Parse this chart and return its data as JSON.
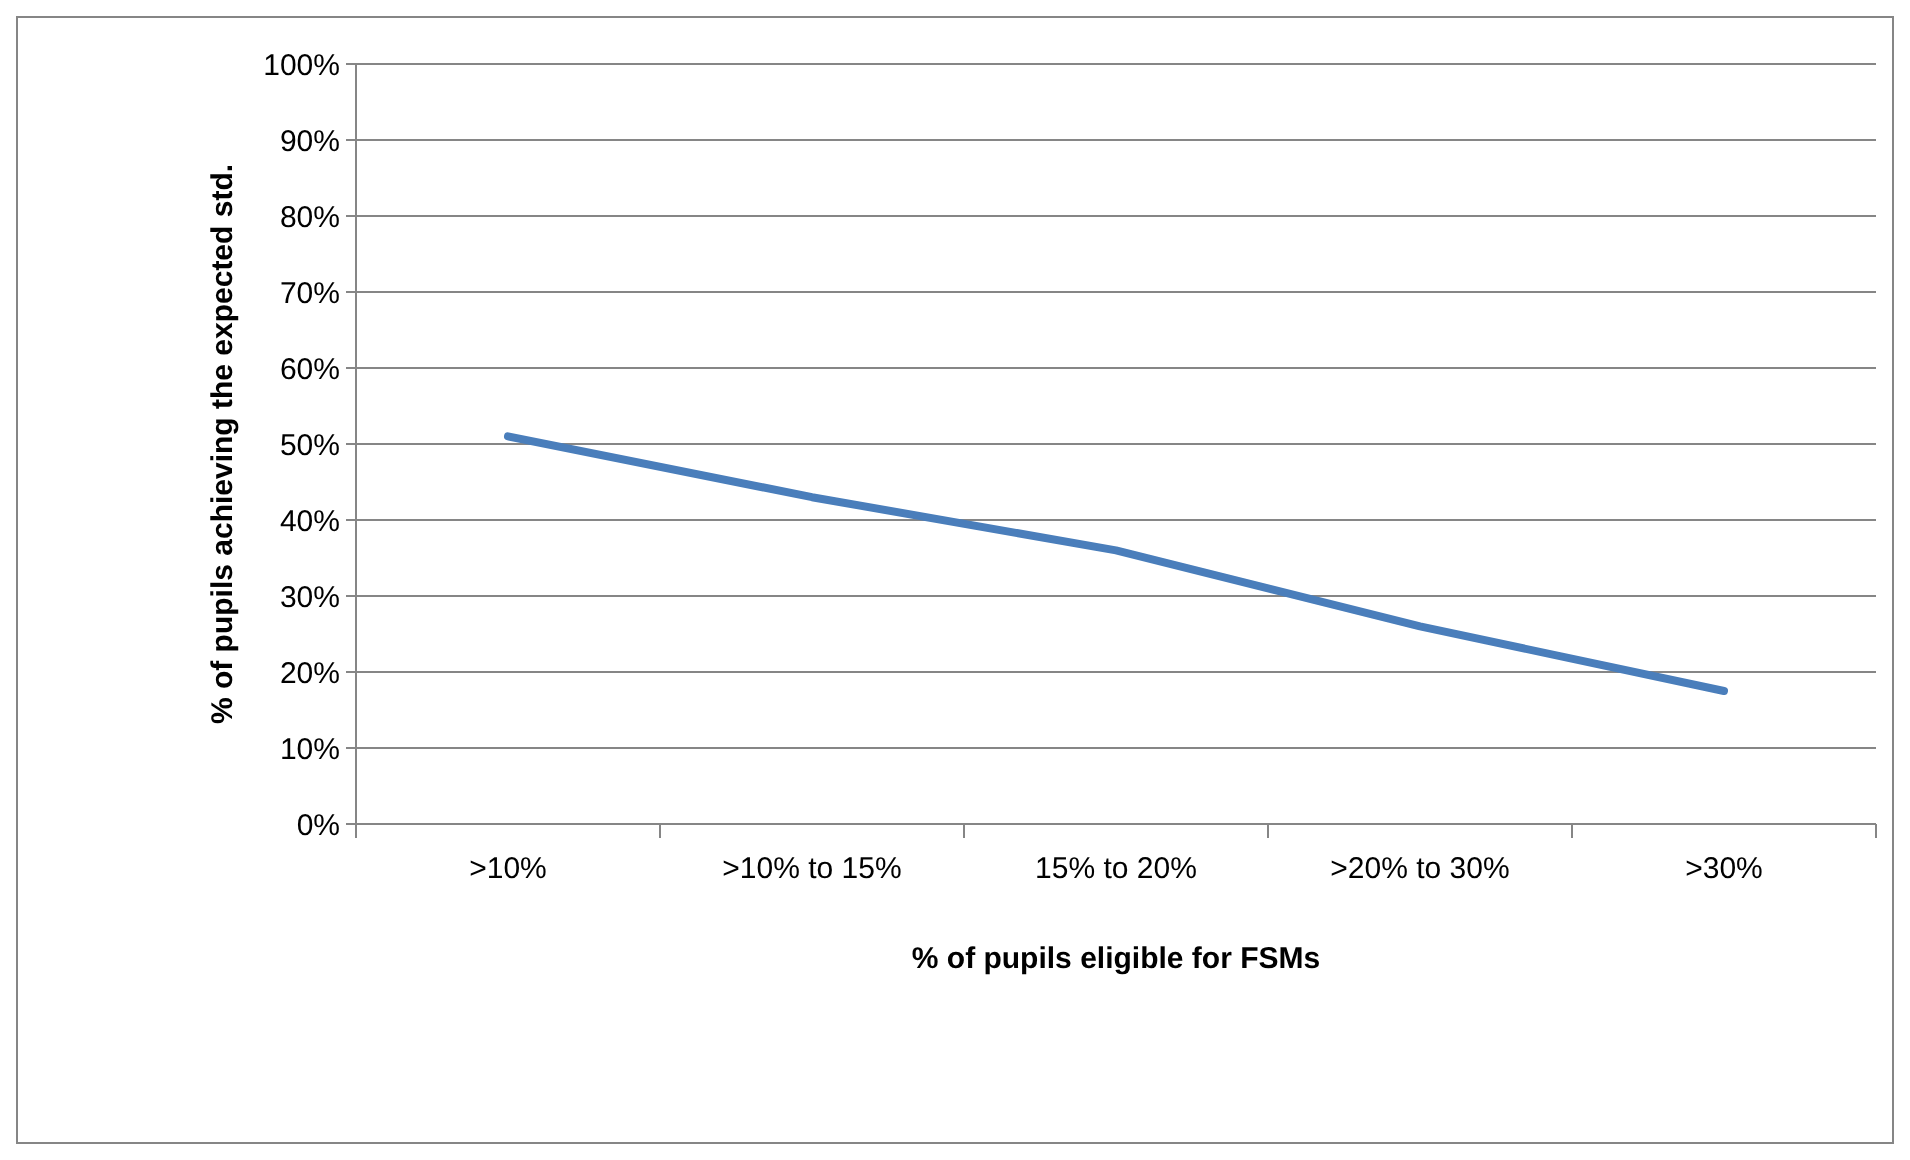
{
  "chart_data": {
    "type": "line",
    "xlabel": "% of pupils eligible for FSMs",
    "ylabel": "% of pupils achieving the expected std.",
    "categories": [
      ">10%",
      ">10% to 15%",
      "15% to 20%",
      ">20% to 30%",
      ">30%"
    ],
    "series": [
      {
        "color": "#4a7ebb",
        "values": [
          51,
          43,
          36,
          26,
          17.5
        ]
      }
    ],
    "ylim": [
      0,
      100
    ],
    "yticks": [
      {
        "value": 0,
        "label": "0%"
      },
      {
        "value": 10,
        "label": "10%"
      },
      {
        "value": 20,
        "label": "20%"
      },
      {
        "value": 30,
        "label": "30%"
      },
      {
        "value": 40,
        "label": "40%"
      },
      {
        "value": 50,
        "label": "50%"
      },
      {
        "value": 60,
        "label": "60%"
      },
      {
        "value": 70,
        "label": "70%"
      },
      {
        "value": 80,
        "label": "80%"
      },
      {
        "value": 90,
        "label": "90%"
      },
      {
        "value": 100,
        "label": "100%"
      }
    ],
    "grid": "y",
    "marker": "none",
    "line_style": "solid"
  }
}
